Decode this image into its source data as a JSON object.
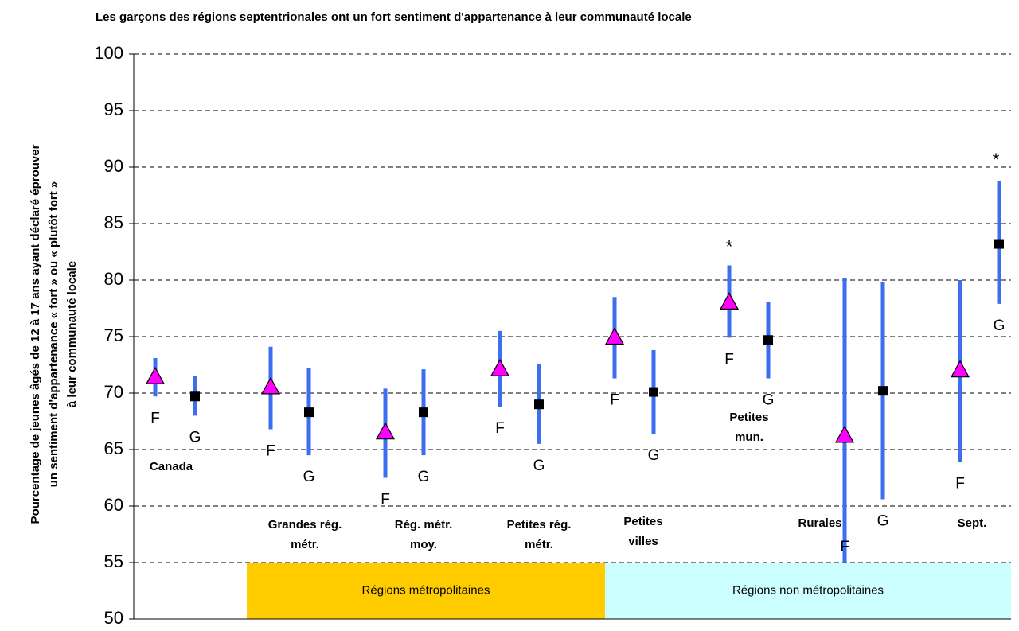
{
  "chart_data": {
    "type": "errorbar",
    "title": "Les garçons des régions septentrionales ont un fort sentiment d'appartenance à leur communauté locale",
    "y_label": [
      "Pourcentage de jeunes âgés de 12 à 17 ans ayant déclaré éprouver",
      "un sentiment d'appartenance « fort » ou « plutôt fort »",
      "à leur communauté locale"
    ],
    "categories": [
      [
        "Canada"
      ],
      [
        "Grandes rég.",
        "métr."
      ],
      [
        "Rég. métr.",
        "moy."
      ],
      [
        "Petites rég.",
        "métr."
      ],
      [
        "Petites",
        "villes"
      ],
      [
        "Petites",
        "mun."
      ],
      [
        "Rurales"
      ],
      [
        "Sept."
      ]
    ],
    "series": [
      {
        "name": "F",
        "color": "#ff00ff",
        "marker": "triangle",
        "values": [
          71.4,
          70.5,
          66.5,
          72.1,
          74.9,
          78.0,
          66.2,
          72.0
        ],
        "lower": [
          69.7,
          66.8,
          62.5,
          68.8,
          71.3,
          74.9,
          55.0,
          63.9
        ],
        "upper": [
          73.1,
          74.1,
          70.4,
          75.5,
          78.5,
          81.3,
          80.2,
          80.0
        ]
      },
      {
        "name": "G",
        "color": "#000000",
        "marker": "square",
        "values": [
          69.7,
          68.3,
          68.3,
          69.0,
          70.1,
          74.7,
          70.2,
          83.2
        ],
        "lower": [
          68.0,
          64.5,
          64.5,
          65.5,
          66.4,
          71.3,
          60.6,
          77.9
        ],
        "upper": [
          71.5,
          72.2,
          72.1,
          72.6,
          73.8,
          78.1,
          79.8,
          88.8
        ]
      }
    ],
    "error_color": "#3d6ef0",
    "annotations": [
      "*",
      "*"
    ],
    "groups": [
      {
        "label": "Régions métropolitaines",
        "color": "#ffcc00"
      },
      {
        "label": "Régions non métropolitaines",
        "color": "#ccffff"
      }
    ],
    "ylim": [
      50,
      100
    ],
    "yticks": [
      50,
      55,
      60,
      65,
      70,
      75,
      80,
      85,
      90,
      95,
      100
    ],
    "grid": true
  }
}
